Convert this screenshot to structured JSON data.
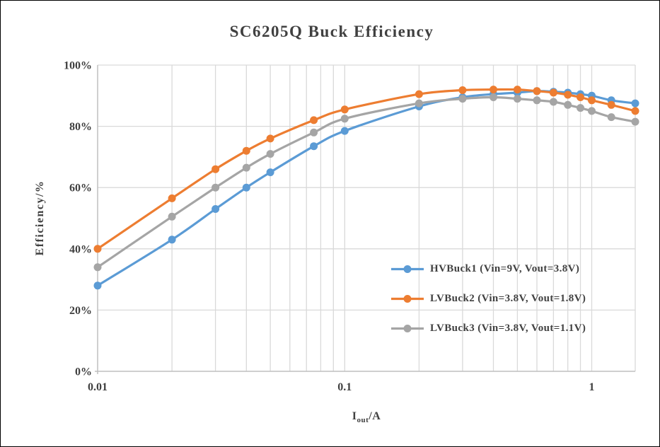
{
  "title": "SC6205Q Buck Efficiency",
  "chart_data": {
    "type": "line",
    "title": "SC6205Q Buck Efficiency",
    "x_scale": "log",
    "xlabel": {
      "base": "I",
      "sub": "out",
      "unit": "/A"
    },
    "ylabel": "Efficiency/%",
    "xlim": [
      0.01,
      1.5
    ],
    "ylim": [
      0,
      100
    ],
    "grid": true,
    "legend_position": "inside-right",
    "x_ticks": [
      {
        "value": 0.01,
        "label": "0.01"
      },
      {
        "value": 0.1,
        "label": "0.1"
      },
      {
        "value": 1,
        "label": "1"
      }
    ],
    "y_ticks": [
      {
        "value": 0,
        "label": "0%"
      },
      {
        "value": 20,
        "label": "20%"
      },
      {
        "value": 40,
        "label": "40%"
      },
      {
        "value": 60,
        "label": "60%"
      },
      {
        "value": 80,
        "label": "80%"
      },
      {
        "value": 100,
        "label": "100%"
      }
    ],
    "x_gridlines": [
      0.02,
      0.03,
      0.04,
      0.05,
      0.06,
      0.07,
      0.08,
      0.09,
      0.1,
      0.2,
      0.3,
      0.4,
      0.5,
      0.6,
      0.7,
      0.8,
      0.9,
      1
    ],
    "x": [
      0.01,
      0.02,
      0.03,
      0.04,
      0.05,
      0.075,
      0.1,
      0.2,
      0.3,
      0.4,
      0.5,
      0.6,
      0.7,
      0.8,
      0.9,
      1.0,
      1.2,
      1.5
    ],
    "series": [
      {
        "name": "HVBuck1 (Vin=9V, Vout=3.8V)",
        "color": "#5B9BD5",
        "values": [
          28,
          43,
          53,
          60,
          65,
          73.5,
          78.5,
          86.5,
          89.5,
          90.5,
          91,
          91.5,
          91.3,
          91,
          90.5,
          90,
          88.5,
          87.5
        ]
      },
      {
        "name": "LVBuck2 (Vin=3.8V, Vout=1.8V)",
        "color": "#ED7D31",
        "values": [
          40,
          56.5,
          66,
          72,
          76,
          82,
          85.5,
          90.5,
          91.8,
          92,
          92,
          91.5,
          91,
          90.3,
          89.5,
          88.5,
          87,
          85
        ]
      },
      {
        "name": "LVBuck3 (Vin=3.8V, Vout=1.1V)",
        "color": "#A5A5A5",
        "values": [
          34,
          50.5,
          60,
          66.5,
          71,
          78,
          82.5,
          87.5,
          89,
          89.5,
          89,
          88.5,
          88,
          87,
          86,
          85,
          83,
          81.5
        ]
      }
    ],
    "colors": {
      "gridline": "#D9D9D9",
      "axis": "#BFBFBF",
      "text": "#3F3F3F"
    }
  }
}
